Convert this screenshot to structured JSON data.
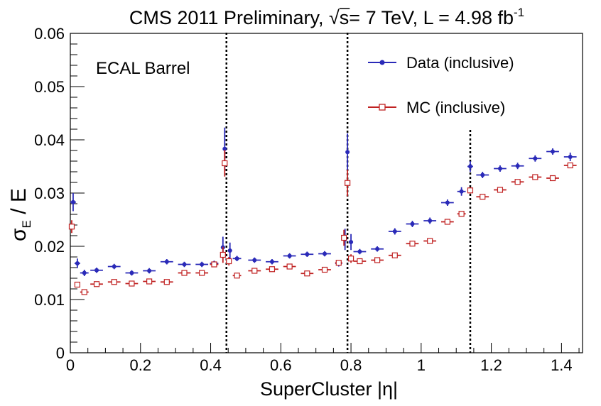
{
  "chart_data": {
    "type": "scatter",
    "title": {
      "main": "CMS 2011 Preliminary, ",
      "sqrt": "√s",
      "rest": "= 7 TeV, L = 4.98 fb",
      "sup": "-1"
    },
    "xlabel": "SuperCluster |η|",
    "ylabel": {
      "sigma": "σ",
      "sub": "E",
      "rest": " / E"
    },
    "annotation": "ECAL Barrel",
    "xlim": [
      0,
      1.46
    ],
    "ylim": [
      0,
      0.06
    ],
    "x_ticks": [
      "0",
      "0.2",
      "0.4",
      "0.6",
      "0.8",
      "1",
      "1.2",
      "1.4"
    ],
    "y_ticks": [
      "0",
      "0.01",
      "0.02",
      "0.03",
      "0.04",
      "0.05",
      "0.06"
    ],
    "vlines": [
      0.445,
      0.79,
      1.14
    ],
    "legend_position": "top-right",
    "colors": {
      "data": "#2a2ab8",
      "mc": "#c02222"
    },
    "series": [
      {
        "name": "Data (inclusive)",
        "marker": "filled-circle",
        "points": [
          {
            "x": 0.008,
            "y": 0.0283,
            "xerr": 0.008,
            "yerr": 0.0017
          },
          {
            "x": 0.02,
            "y": 0.0168,
            "xerr": 0.008,
            "yerr": 0.0009
          },
          {
            "x": 0.04,
            "y": 0.015,
            "xerr": 0.012,
            "yerr": 0.0006
          },
          {
            "x": 0.075,
            "y": 0.0155,
            "xerr": 0.018,
            "yerr": 0.0005
          },
          {
            "x": 0.125,
            "y": 0.0162,
            "xerr": 0.018,
            "yerr": 0.0005
          },
          {
            "x": 0.175,
            "y": 0.015,
            "xerr": 0.018,
            "yerr": 0.0005
          },
          {
            "x": 0.225,
            "y": 0.0154,
            "xerr": 0.018,
            "yerr": 0.0005
          },
          {
            "x": 0.275,
            "y": 0.0171,
            "xerr": 0.018,
            "yerr": 0.0005
          },
          {
            "x": 0.325,
            "y": 0.0166,
            "xerr": 0.018,
            "yerr": 0.0005
          },
          {
            "x": 0.375,
            "y": 0.0166,
            "xerr": 0.018,
            "yerr": 0.0005
          },
          {
            "x": 0.41,
            "y": 0.0168,
            "xerr": 0.012,
            "yerr": 0.0005
          },
          {
            "x": 0.435,
            "y": 0.0198,
            "xerr": 0.006,
            "yerr": 0.002
          },
          {
            "x": 0.44,
            "y": 0.0383,
            "xerr": 0.004,
            "yerr": 0.004
          },
          {
            "x": 0.455,
            "y": 0.0192,
            "xerr": 0.006,
            "yerr": 0.0015
          },
          {
            "x": 0.475,
            "y": 0.0177,
            "xerr": 0.012,
            "yerr": 0.0005
          },
          {
            "x": 0.525,
            "y": 0.0174,
            "xerr": 0.018,
            "yerr": 0.0005
          },
          {
            "x": 0.575,
            "y": 0.0171,
            "xerr": 0.018,
            "yerr": 0.0005
          },
          {
            "x": 0.625,
            "y": 0.0182,
            "xerr": 0.018,
            "yerr": 0.0005
          },
          {
            "x": 0.675,
            "y": 0.0185,
            "xerr": 0.018,
            "yerr": 0.0005
          },
          {
            "x": 0.725,
            "y": 0.0186,
            "xerr": 0.018,
            "yerr": 0.0005
          },
          {
            "x": 0.765,
            "y": 0.0168,
            "xerr": 0.01,
            "yerr": 0.0006
          },
          {
            "x": 0.783,
            "y": 0.0213,
            "xerr": 0.006,
            "yerr": 0.002
          },
          {
            "x": 0.79,
            "y": 0.0377,
            "xerr": 0.004,
            "yerr": 0.0035
          },
          {
            "x": 0.8,
            "y": 0.0208,
            "xerr": 0.006,
            "yerr": 0.0015
          },
          {
            "x": 0.825,
            "y": 0.019,
            "xerr": 0.018,
            "yerr": 0.0005
          },
          {
            "x": 0.875,
            "y": 0.0195,
            "xerr": 0.018,
            "yerr": 0.0005
          },
          {
            "x": 0.925,
            "y": 0.0228,
            "xerr": 0.018,
            "yerr": 0.0006
          },
          {
            "x": 0.975,
            "y": 0.0242,
            "xerr": 0.018,
            "yerr": 0.0006
          },
          {
            "x": 1.025,
            "y": 0.0248,
            "xerr": 0.018,
            "yerr": 0.0006
          },
          {
            "x": 1.075,
            "y": 0.0282,
            "xerr": 0.018,
            "yerr": 0.0006
          },
          {
            "x": 1.115,
            "y": 0.0303,
            "xerr": 0.012,
            "yerr": 0.0008
          },
          {
            "x": 1.14,
            "y": 0.035,
            "xerr": 0.008,
            "yerr": 0.001
          },
          {
            "x": 1.175,
            "y": 0.0334,
            "xerr": 0.018,
            "yerr": 0.0006
          },
          {
            "x": 1.225,
            "y": 0.0346,
            "xerr": 0.018,
            "yerr": 0.0006
          },
          {
            "x": 1.275,
            "y": 0.0351,
            "xerr": 0.018,
            "yerr": 0.0006
          },
          {
            "x": 1.325,
            "y": 0.0365,
            "xerr": 0.018,
            "yerr": 0.0006
          },
          {
            "x": 1.375,
            "y": 0.0378,
            "xerr": 0.018,
            "yerr": 0.0006
          },
          {
            "x": 1.425,
            "y": 0.0368,
            "xerr": 0.018,
            "yerr": 0.0008
          }
        ]
      },
      {
        "name": "MC (inclusive)",
        "marker": "open-square",
        "points": [
          {
            "x": 0.004,
            "y": 0.0237,
            "xerr": 0.004,
            "yerr": 0.0012
          },
          {
            "x": 0.02,
            "y": 0.0128,
            "xerr": 0.008,
            "yerr": 0.0004
          },
          {
            "x": 0.04,
            "y": 0.0114,
            "xerr": 0.012,
            "yerr": 0.0003
          },
          {
            "x": 0.075,
            "y": 0.0129,
            "xerr": 0.018,
            "yerr": 0.0003
          },
          {
            "x": 0.125,
            "y": 0.0133,
            "xerr": 0.018,
            "yerr": 0.0003
          },
          {
            "x": 0.175,
            "y": 0.013,
            "xerr": 0.018,
            "yerr": 0.0003
          },
          {
            "x": 0.225,
            "y": 0.0134,
            "xerr": 0.018,
            "yerr": 0.0003
          },
          {
            "x": 0.275,
            "y": 0.0133,
            "xerr": 0.018,
            "yerr": 0.0003
          },
          {
            "x": 0.325,
            "y": 0.015,
            "xerr": 0.018,
            "yerr": 0.0003
          },
          {
            "x": 0.375,
            "y": 0.015,
            "xerr": 0.018,
            "yerr": 0.0003
          },
          {
            "x": 0.41,
            "y": 0.0166,
            "xerr": 0.012,
            "yerr": 0.0004
          },
          {
            "x": 0.435,
            "y": 0.0184,
            "xerr": 0.006,
            "yerr": 0.0015
          },
          {
            "x": 0.44,
            "y": 0.0356,
            "xerr": 0.004,
            "yerr": 0.0025
          },
          {
            "x": 0.452,
            "y": 0.0172,
            "xerr": 0.006,
            "yerr": 0.0008
          },
          {
            "x": 0.475,
            "y": 0.0145,
            "xerr": 0.012,
            "yerr": 0.0003
          },
          {
            "x": 0.525,
            "y": 0.0154,
            "xerr": 0.018,
            "yerr": 0.0003
          },
          {
            "x": 0.575,
            "y": 0.0157,
            "xerr": 0.018,
            "yerr": 0.0003
          },
          {
            "x": 0.625,
            "y": 0.0162,
            "xerr": 0.018,
            "yerr": 0.0003
          },
          {
            "x": 0.675,
            "y": 0.0149,
            "xerr": 0.018,
            "yerr": 0.0003
          },
          {
            "x": 0.725,
            "y": 0.0156,
            "xerr": 0.018,
            "yerr": 0.0003
          },
          {
            "x": 0.765,
            "y": 0.0169,
            "xerr": 0.01,
            "yerr": 0.0004
          },
          {
            "x": 0.78,
            "y": 0.0216,
            "xerr": 0.006,
            "yerr": 0.0015
          },
          {
            "x": 0.79,
            "y": 0.0319,
            "xerr": 0.004,
            "yerr": 0.0025
          },
          {
            "x": 0.8,
            "y": 0.0177,
            "xerr": 0.006,
            "yerr": 0.0008
          },
          {
            "x": 0.825,
            "y": 0.0172,
            "xerr": 0.018,
            "yerr": 0.0003
          },
          {
            "x": 0.875,
            "y": 0.0174,
            "xerr": 0.018,
            "yerr": 0.0003
          },
          {
            "x": 0.925,
            "y": 0.0183,
            "xerr": 0.018,
            "yerr": 0.0003
          },
          {
            "x": 0.975,
            "y": 0.0205,
            "xerr": 0.018,
            "yerr": 0.0003
          },
          {
            "x": 1.025,
            "y": 0.021,
            "xerr": 0.018,
            "yerr": 0.0003
          },
          {
            "x": 1.075,
            "y": 0.0246,
            "xerr": 0.018,
            "yerr": 0.0003
          },
          {
            "x": 1.115,
            "y": 0.0261,
            "xerr": 0.012,
            "yerr": 0.0004
          },
          {
            "x": 1.14,
            "y": 0.0305,
            "xerr": 0.008,
            "yerr": 0.0006
          },
          {
            "x": 1.175,
            "y": 0.0293,
            "xerr": 0.018,
            "yerr": 0.0004
          },
          {
            "x": 1.225,
            "y": 0.0306,
            "xerr": 0.018,
            "yerr": 0.0004
          },
          {
            "x": 1.275,
            "y": 0.0321,
            "xerr": 0.018,
            "yerr": 0.0004
          },
          {
            "x": 1.325,
            "y": 0.033,
            "xerr": 0.018,
            "yerr": 0.0004
          },
          {
            "x": 1.375,
            "y": 0.0328,
            "xerr": 0.018,
            "yerr": 0.0004
          },
          {
            "x": 1.425,
            "y": 0.0352,
            "xerr": 0.018,
            "yerr": 0.0005
          }
        ]
      }
    ]
  }
}
